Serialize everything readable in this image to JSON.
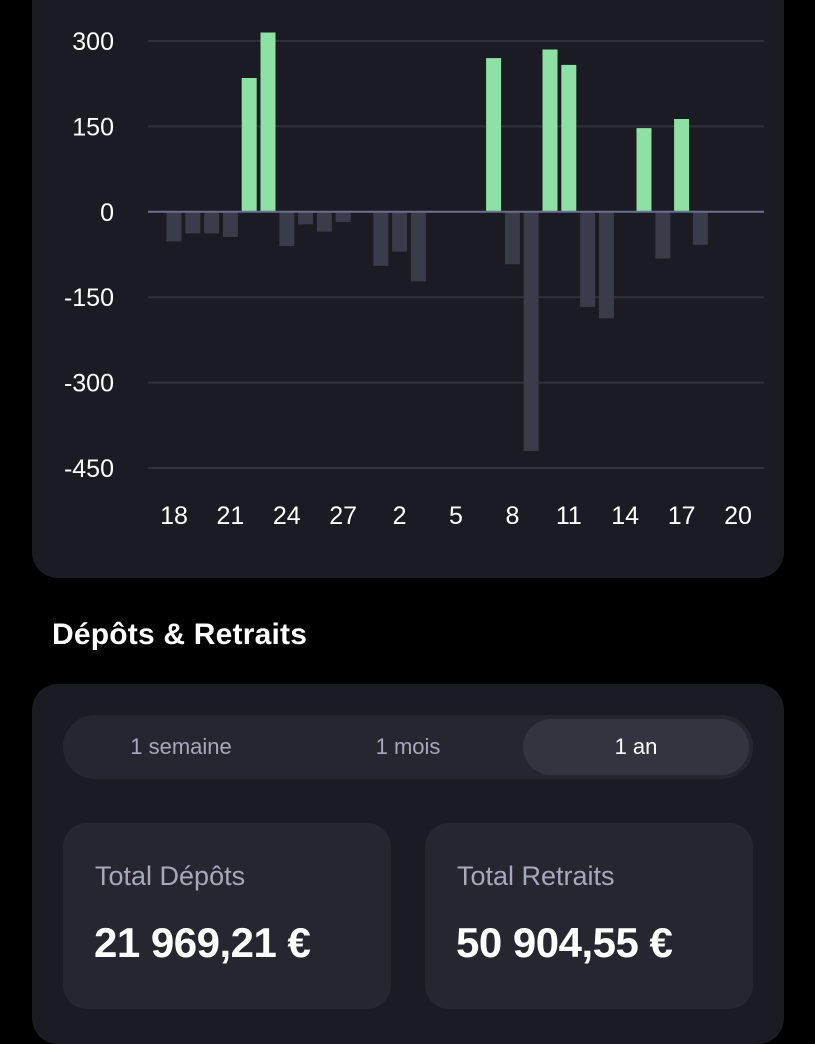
{
  "colors": {
    "positive_bar": "#8ee1a4",
    "negative_bar": "#3a3b4b",
    "grid": "#2f313b",
    "zero_line": "#6b6f90",
    "axis_text": "#ffffff"
  },
  "chart_data": {
    "type": "bar",
    "x_ticks": [
      "18",
      "21",
      "24",
      "27",
      "2",
      "5",
      "8",
      "11",
      "14",
      "17",
      "20"
    ],
    "y_ticks": [
      300,
      150,
      0,
      -150,
      -300,
      -450
    ],
    "ylim": [
      -450,
      300
    ],
    "grid": true,
    "values": [
      -52,
      -38,
      -38,
      -44,
      235,
      315,
      -60,
      -22,
      -35,
      -18,
      0,
      -95,
      -70,
      -122,
      0,
      0,
      0,
      270,
      -92,
      -420,
      285,
      258,
      -167,
      -187,
      0,
      147,
      -82,
      163,
      -58,
      0
    ]
  },
  "section": {
    "title": "Dépôts & Retraits"
  },
  "period_selector": {
    "options": [
      "1 semaine",
      "1 mois",
      "1 an"
    ],
    "selected": "1 an"
  },
  "totals": {
    "deposits_label": "Total Dépôts",
    "deposits_value": "21 969,21 €",
    "withdrawals_label": "Total Retraits",
    "withdrawals_value": "50 904,55 €"
  }
}
